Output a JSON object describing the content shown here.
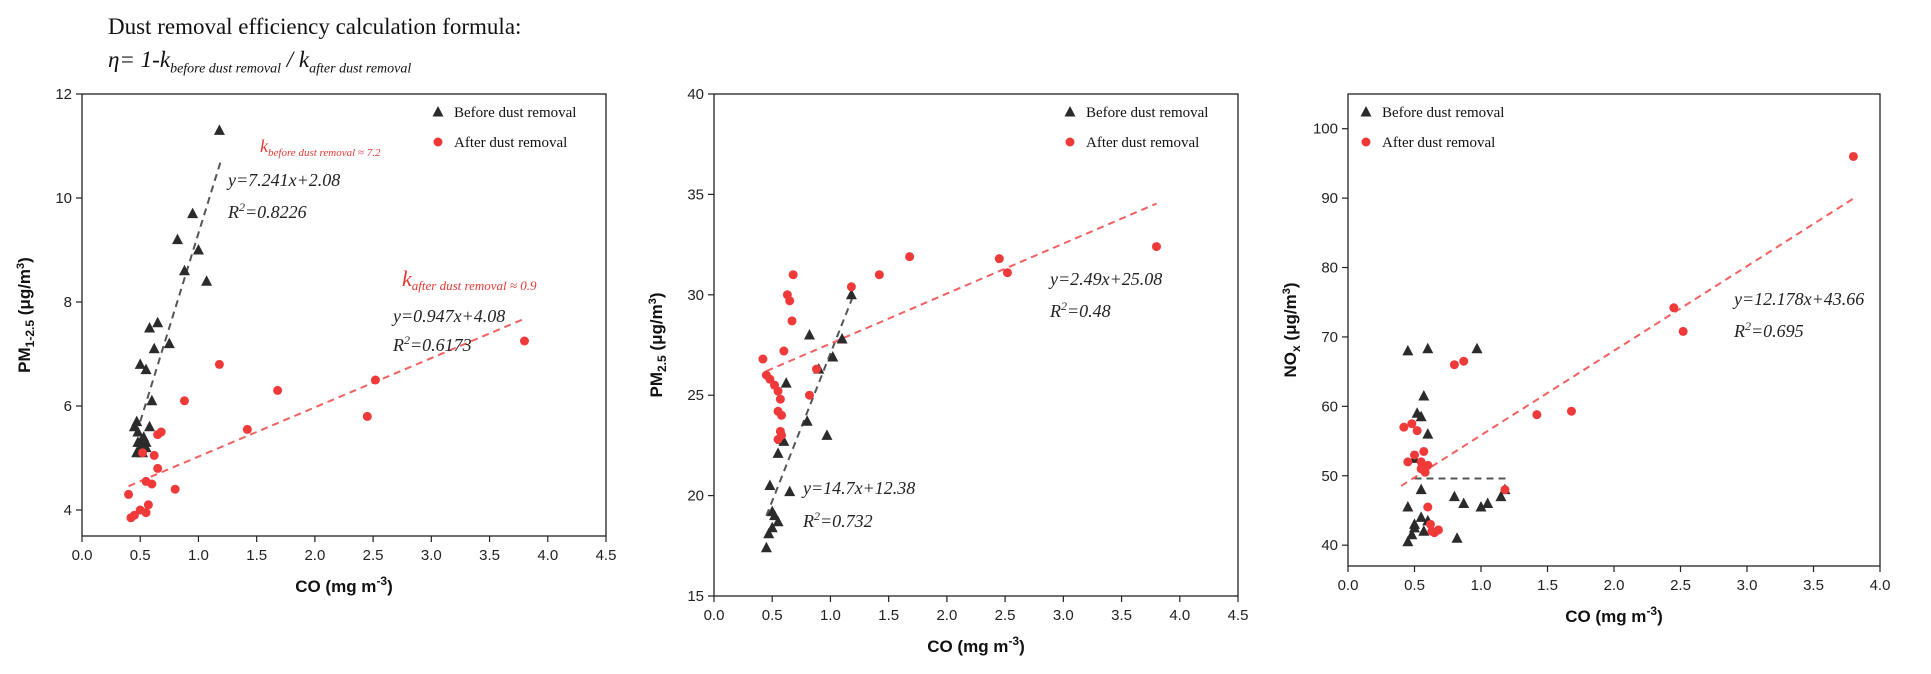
{
  "header": {
    "title": "Dust removal efficiency calculation formula:",
    "formula_eta": "η= 1-k",
    "formula_sub1": "before dust removal",
    "formula_slash": " / k",
    "formula_sub2": "after dust removal"
  },
  "colors": {
    "before": "#2b2b2b",
    "after": "#f03a3a",
    "axis": "#222222"
  },
  "chart_data": [
    {
      "type": "scatter",
      "xlabel": "CO (mg m-3)",
      "ylabel": "PM1-2.5 (μg/m3)",
      "xlim": [
        0,
        4.5
      ],
      "ylim": [
        3.5,
        12
      ],
      "xticks": [
        0.0,
        0.5,
        1.0,
        1.5,
        2.0,
        2.5,
        3.0,
        3.5,
        4.0,
        4.5
      ],
      "yticks": [
        4,
        6,
        8,
        10,
        12
      ],
      "legend": "top-right",
      "series": [
        {
          "name": "Before dust removal",
          "marker": "triangle",
          "points": [
            [
              0.45,
              5.6
            ],
            [
              0.47,
              5.7
            ],
            [
              0.48,
              5.5
            ],
            [
              0.5,
              5.3
            ],
            [
              0.5,
              5.2
            ],
            [
              0.52,
              5.1
            ],
            [
              0.55,
              5.2
            ],
            [
              0.53,
              5.4
            ],
            [
              0.48,
              5.3
            ],
            [
              0.58,
              5.6
            ],
            [
              0.5,
              6.8
            ],
            [
              0.55,
              6.7
            ],
            [
              0.58,
              7.5
            ],
            [
              0.62,
              7.1
            ],
            [
              0.65,
              7.6
            ],
            [
              0.6,
              6.1
            ],
            [
              0.75,
              7.2
            ],
            [
              0.82,
              9.2
            ],
            [
              0.88,
              8.6
            ],
            [
              0.95,
              9.7
            ],
            [
              1.0,
              9.0
            ],
            [
              1.07,
              8.4
            ],
            [
              1.18,
              11.3
            ],
            [
              0.47,
              5.1
            ],
            [
              0.55,
              5.3
            ]
          ],
          "fit": {
            "slope": 7.241,
            "intercept": 2.08,
            "xrange": [
              0.5,
              1.2
            ]
          }
        },
        {
          "name": "After dust removal",
          "marker": "circle",
          "points": [
            [
              0.42,
              3.85
            ],
            [
              0.45,
              3.9
            ],
            [
              0.5,
              4.0
            ],
            [
              0.55,
              3.95
            ],
            [
              0.57,
              4.1
            ],
            [
              0.6,
              4.5
            ],
            [
              0.55,
              4.55
            ],
            [
              0.65,
              4.8
            ],
            [
              0.62,
              5.05
            ],
            [
              0.52,
              5.1
            ],
            [
              0.65,
              5.45
            ],
            [
              0.68,
              5.5
            ],
            [
              0.4,
              4.3
            ],
            [
              0.8,
              4.4
            ],
            [
              0.88,
              6.1
            ],
            [
              1.18,
              6.8
            ],
            [
              1.42,
              5.55
            ],
            [
              1.68,
              6.3
            ],
            [
              2.45,
              5.8
            ],
            [
              2.52,
              6.5
            ],
            [
              3.8,
              7.25
            ]
          ],
          "fit": {
            "slope": 0.947,
            "intercept": 4.08,
            "xrange": [
              0.4,
              3.8
            ]
          }
        }
      ],
      "annotations": {
        "fit_before": "y=7.241x+2.08",
        "r2_before": "R2=0.8226",
        "fit_after": "y=0.947x+4.08",
        "r2_after": "R2=0.6173",
        "k_before_main": "k",
        "k_before_sub": "before dust removal ≈ 7.2",
        "k_after_main": "k",
        "k_after_sub": "after dust removal ≈ 0.9"
      }
    },
    {
      "type": "scatter",
      "xlabel": "CO (mg m-3)",
      "ylabel": "PM2.5 (μg/m3)",
      "xlim": [
        0,
        4.5
      ],
      "ylim": [
        15,
        40
      ],
      "xticks": [
        0.0,
        0.5,
        1.0,
        1.5,
        2.0,
        2.5,
        3.0,
        3.5,
        4.0,
        4.5
      ],
      "yticks": [
        15,
        20,
        25,
        30,
        35,
        40
      ],
      "legend": "top-right",
      "series": [
        {
          "name": "Before dust removal",
          "marker": "triangle",
          "points": [
            [
              0.45,
              17.4
            ],
            [
              0.47,
              18.1
            ],
            [
              0.5,
              18.4
            ],
            [
              0.52,
              19.0
            ],
            [
              0.5,
              19.2
            ],
            [
              0.48,
              20.5
            ],
            [
              0.55,
              18.7
            ],
            [
              0.55,
              22.1
            ],
            [
              0.58,
              22.8
            ],
            [
              0.6,
              22.7
            ],
            [
              0.65,
              20.2
            ],
            [
              0.62,
              25.6
            ],
            [
              0.8,
              23.7
            ],
            [
              0.82,
              28.0
            ],
            [
              0.9,
              26.3
            ],
            [
              0.97,
              23.0
            ],
            [
              1.02,
              26.9
            ],
            [
              1.1,
              27.8
            ],
            [
              1.18,
              30.0
            ]
          ],
          "fit": {
            "slope": 14.7,
            "intercept": 12.38,
            "xrange": [
              0.45,
              1.2
            ]
          }
        },
        {
          "name": "After dust removal",
          "marker": "circle",
          "points": [
            [
              0.42,
              26.8
            ],
            [
              0.45,
              26.0
            ],
            [
              0.48,
              25.8
            ],
            [
              0.52,
              25.5
            ],
            [
              0.55,
              25.2
            ],
            [
              0.57,
              24.8
            ],
            [
              0.55,
              24.2
            ],
            [
              0.58,
              24.0
            ],
            [
              0.57,
              23.2
            ],
            [
              0.58,
              23.0
            ],
            [
              0.55,
              22.8
            ],
            [
              0.6,
              27.2
            ],
            [
              0.63,
              30.0
            ],
            [
              0.65,
              29.7
            ],
            [
              0.68,
              31.0
            ],
            [
              0.67,
              28.7
            ],
            [
              0.82,
              25.0
            ],
            [
              0.88,
              26.3
            ],
            [
              1.18,
              30.4
            ],
            [
              1.42,
              31.0
            ],
            [
              1.68,
              31.9
            ],
            [
              2.45,
              31.8
            ],
            [
              2.52,
              31.1
            ],
            [
              3.8,
              32.4
            ]
          ],
          "fit": {
            "slope": 2.49,
            "intercept": 25.08,
            "xrange": [
              0.45,
              3.8
            ]
          }
        }
      ],
      "annotations": {
        "fit_before": "y=14.7x+12.38",
        "r2_before": "R2=0.732",
        "fit_after": "y=2.49x+25.08",
        "r2_after": "R2=0.48"
      }
    },
    {
      "type": "scatter",
      "xlabel": "CO (mg m-3)",
      "ylabel": "NOx (μg/m3)",
      "xlim": [
        0,
        4.0
      ],
      "ylim": [
        37,
        105
      ],
      "xticks": [
        0.0,
        0.5,
        1.0,
        1.5,
        2.0,
        2.5,
        3.0,
        3.5,
        4.0
      ],
      "yticks": [
        40,
        50,
        60,
        70,
        80,
        90,
        100
      ],
      "legend": "top-left",
      "series": [
        {
          "name": "Before dust removal",
          "marker": "triangle",
          "points": [
            [
              0.45,
              40.5
            ],
            [
              0.48,
              41.5
            ],
            [
              0.5,
              43.0
            ],
            [
              0.45,
              45.5
            ],
            [
              0.5,
              42.5
            ],
            [
              0.55,
              44.0
            ],
            [
              0.57,
              42.0
            ],
            [
              0.6,
              43.5
            ],
            [
              0.55,
              48.0
            ],
            [
              0.5,
              52.5
            ],
            [
              0.55,
              58.5
            ],
            [
              0.57,
              61.5
            ],
            [
              0.52,
              59.0
            ],
            [
              0.6,
              56.0
            ],
            [
              0.45,
              68.0
            ],
            [
              0.6,
              68.3
            ],
            [
              0.97,
              68.3
            ],
            [
              0.8,
              47.0
            ],
            [
              0.82,
              41.0
            ],
            [
              0.87,
              46.0
            ],
            [
              1.0,
              45.5
            ],
            [
              1.05,
              46.0
            ],
            [
              1.15,
              47.0
            ],
            [
              1.18,
              48.0
            ]
          ],
          "fit": {
            "slope": 0.0,
            "intercept": 49.6,
            "xrange": [
              0.5,
              1.2
            ]
          }
        },
        {
          "name": "After dust removal",
          "marker": "circle",
          "points": [
            [
              0.42,
              57.0
            ],
            [
              0.45,
              52.0
            ],
            [
              0.48,
              57.5
            ],
            [
              0.5,
              53.0
            ],
            [
              0.52,
              56.5
            ],
            [
              0.55,
              52.0
            ],
            [
              0.55,
              51.0
            ],
            [
              0.58,
              50.5
            ],
            [
              0.57,
              53.5
            ],
            [
              0.6,
              51.5
            ],
            [
              0.6,
              45.5
            ],
            [
              0.62,
              43.0
            ],
            [
              0.63,
              42.0
            ],
            [
              0.65,
              41.8
            ],
            [
              0.68,
              42.2
            ],
            [
              0.8,
              66.0
            ],
            [
              0.87,
              66.5
            ],
            [
              1.18,
              48.0
            ],
            [
              1.42,
              58.8
            ],
            [
              1.68,
              59.3
            ],
            [
              2.45,
              74.2
            ],
            [
              2.52,
              70.8
            ],
            [
              3.8,
              96.0
            ]
          ],
          "fit": {
            "slope": 12.178,
            "intercept": 43.66,
            "xrange": [
              0.4,
              3.8
            ]
          }
        }
      ],
      "annotations": {
        "fit_after": "y=12.178x+43.66",
        "r2_after": "R2=0.695"
      }
    }
  ]
}
